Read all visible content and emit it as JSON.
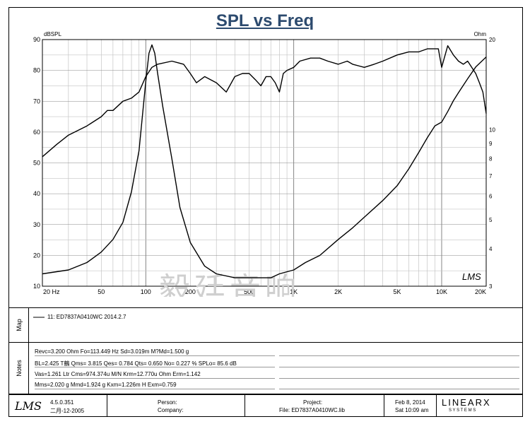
{
  "chart_data": {
    "type": "line",
    "title": "SPL vs Freq",
    "yleft_label": "dBSPL",
    "yright_label": "Ohm",
    "xscale": "log",
    "xlim": [
      20,
      20000
    ],
    "ylim_left": [
      10,
      90
    ],
    "ylim_right": [
      3,
      20
    ],
    "yright_scale": "log",
    "grid": true,
    "x_ticks": [
      {
        "label": "20 Hz",
        "value": 20
      },
      {
        "label": "50",
        "value": 50
      },
      {
        "label": "100",
        "value": 100
      },
      {
        "label": "200",
        "value": 200
      },
      {
        "label": "500",
        "value": 500
      },
      {
        "label": "1K",
        "value": 1000
      },
      {
        "label": "2K",
        "value": 2000
      },
      {
        "label": "5K",
        "value": 5000
      },
      {
        "label": "10K",
        "value": 10000
      },
      {
        "label": "20K",
        "value": 20000
      }
    ],
    "y_left_ticks": [
      "10",
      "20",
      "30",
      "40",
      "50",
      "60",
      "70",
      "80",
      "90"
    ],
    "y_right_ticks": [
      {
        "label": "3",
        "value": 3
      },
      {
        "label": "4",
        "value": 4
      },
      {
        "label": "5",
        "value": 5
      },
      {
        "label": "6",
        "value": 6
      },
      {
        "label": "7",
        "value": 7
      },
      {
        "label": "8",
        "value": 8
      },
      {
        "label": "9",
        "value": 9
      },
      {
        "label": "10",
        "value": 10
      },
      {
        "label": "20",
        "value": 20
      }
    ],
    "series": [
      {
        "axis": "left",
        "x": [
          20,
          25,
          30,
          40,
          50,
          55,
          60,
          70,
          80,
          90,
          100,
          110,
          120,
          150,
          180,
          200,
          220,
          250,
          300,
          350,
          400,
          450,
          500,
          550,
          600,
          650,
          700,
          750,
          800,
          850,
          900,
          1000,
          1100,
          1300,
          1500,
          1700,
          2000,
          2300,
          2500,
          3000,
          3500,
          4000,
          5000,
          6000,
          7000,
          8000,
          9000,
          9500,
          10000,
          11000,
          12000,
          13000,
          14000,
          15000,
          17000,
          18000,
          19000,
          20000
        ],
        "y": [
          52,
          56,
          59,
          62,
          65,
          67,
          67,
          70,
          71,
          73,
          78,
          81,
          82,
          83,
          82,
          79,
          76,
          78,
          76,
          73,
          78,
          79,
          79,
          77,
          75,
          78,
          78,
          76,
          73,
          79,
          80,
          81,
          83,
          84,
          84,
          83,
          82,
          83,
          82,
          81,
          82,
          83,
          85,
          86,
          86,
          87,
          87,
          87,
          81,
          88,
          85,
          83,
          82,
          83,
          79,
          76,
          73,
          66
        ]
      },
      {
        "axis": "right",
        "x": [
          20,
          30,
          40,
          50,
          60,
          70,
          80,
          90,
          100,
          105,
          110,
          115,
          120,
          130,
          150,
          170,
          200,
          250,
          300,
          400,
          500,
          600,
          700,
          800,
          1000,
          1200,
          1500,
          2000,
          2500,
          3000,
          4000,
          5000,
          6000,
          7000,
          8000,
          9000,
          10000,
          11000,
          12000,
          13000,
          15000,
          17000,
          20000
        ],
        "y": [
          3.3,
          3.4,
          3.6,
          3.9,
          4.3,
          4.9,
          6.2,
          8.5,
          14.5,
          18.0,
          19.2,
          18.0,
          15.5,
          12.0,
          8.0,
          5.5,
          4.2,
          3.5,
          3.3,
          3.2,
          3.2,
          3.2,
          3.2,
          3.3,
          3.4,
          3.6,
          3.8,
          4.3,
          4.7,
          5.1,
          5.8,
          6.5,
          7.4,
          8.4,
          9.4,
          10.3,
          10.6,
          11.5,
          12.5,
          13.3,
          14.8,
          16.2,
          17.5
        ]
      }
    ],
    "series_label": "11: ED7837A0410WC   2014.2.7",
    "watermark": "毅廷音响",
    "logo": "LMS"
  },
  "panels": {
    "map_label": "Map",
    "notes_label": "Notes"
  },
  "notes": [
    "Revc=3.200 Ohm  Fo=113.449 Hz  Sd=3.019m M?Md=1.500 g",
    "BL=2.425 T鶴  Qms= 3.815  Qes= 0.784  Qts= 0.650  No= 0.227 %  SPLo= 85.6 dB",
    "Vas=1.261 Ltr  Cms=974.374u M/N  Krm=12.770u Ohm  Erm=1.142",
    "Mms=2.020 g  Mmd=1.924 g  Kxm=1.226m H  Exm=0.759"
  ],
  "footer": {
    "logo": "LMS",
    "version": "4.5.0.351",
    "version_date": "二月-12-2005",
    "person_label": "Person:",
    "company_label": "Company:",
    "project_label": "Project:",
    "file_label": "File: ED7837A0410WC.lib",
    "date": "Feb  8, 2014",
    "time": "Sat 10:09 am",
    "brand_main": "LINEARX",
    "brand_sub": "S Y S T E M S"
  }
}
